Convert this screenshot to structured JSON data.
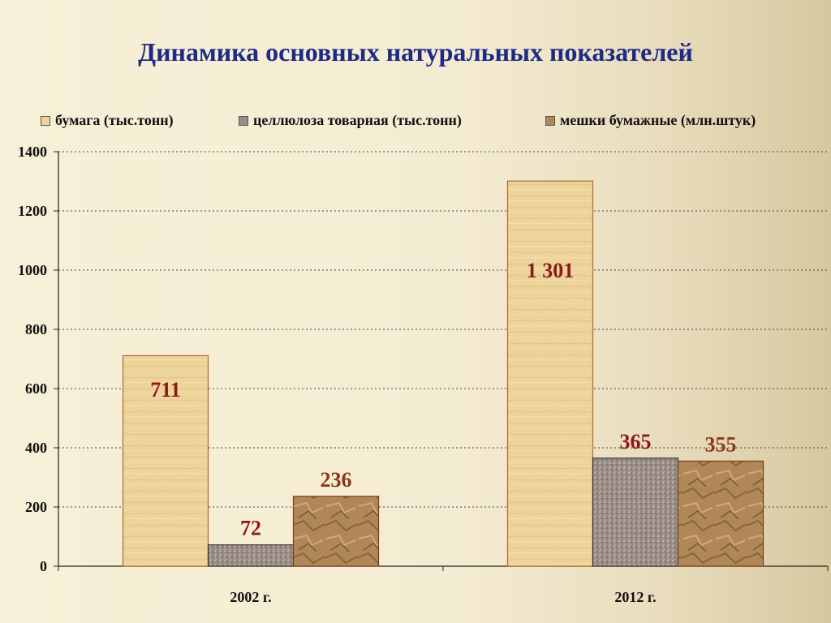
{
  "title": "Динамика основных натуральных показателей",
  "chart_data": {
    "type": "bar",
    "categories": [
      "2002 г.",
      "2012 г."
    ],
    "series": [
      {
        "name": "бумага (тыс.тонн)",
        "values": [
          711,
          1301
        ],
        "labels": [
          "711",
          "1 301"
        ],
        "color": "#ecd49a",
        "label_color": "#8b1a1a"
      },
      {
        "name": "целлюлоза товарная (тыс.тонн)",
        "values": [
          72,
          365
        ],
        "labels": [
          "72",
          "365"
        ],
        "color": "#9a8e86",
        "label_color": "#8b1a1a"
      },
      {
        "name": "мешки бумажные (млн.штук)",
        "values": [
          236,
          355
        ],
        "labels": [
          "236",
          "355"
        ],
        "color": "#b08858",
        "label_color": "#8b3a1a"
      }
    ],
    "ylim": [
      0,
      1400
    ],
    "yticks": [
      "0",
      "200",
      "400",
      "600",
      "800",
      "1000",
      "1200",
      "1400"
    ],
    "grid": true,
    "legend_position": "top"
  }
}
